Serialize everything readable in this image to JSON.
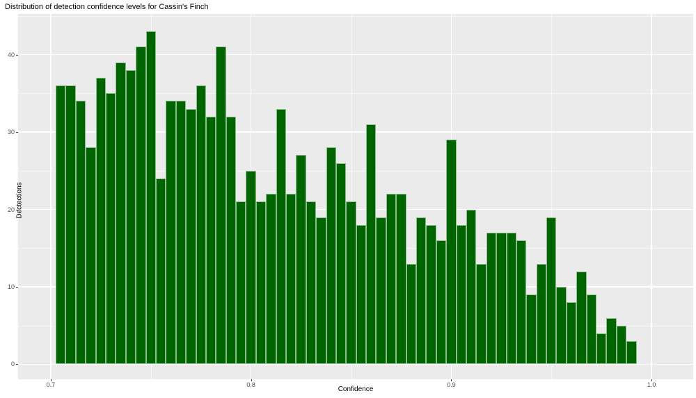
{
  "title": "Distribution of detection confidence levels for Cassin's Finch",
  "chart_data": {
    "type": "bar",
    "subtype": "histogram",
    "title": "Distribution of detection confidence levels for Cassin's Finch",
    "xlabel": "Confidence",
    "ylabel": "Dectections",
    "bin_width": 0.005,
    "bin_centers": [
      0.705,
      0.71,
      0.715,
      0.72,
      0.725,
      0.73,
      0.735,
      0.74,
      0.745,
      0.75,
      0.755,
      0.76,
      0.765,
      0.77,
      0.775,
      0.78,
      0.785,
      0.79,
      0.795,
      0.8,
      0.805,
      0.81,
      0.815,
      0.82,
      0.825,
      0.83,
      0.835,
      0.84,
      0.845,
      0.85,
      0.855,
      0.86,
      0.865,
      0.87,
      0.875,
      0.88,
      0.885,
      0.89,
      0.895,
      0.9,
      0.905,
      0.91,
      0.915,
      0.92,
      0.925,
      0.93,
      0.935,
      0.94,
      0.945,
      0.95,
      0.955,
      0.96,
      0.965,
      0.97,
      0.975,
      0.98,
      0.985,
      0.99
    ],
    "values": [
      36,
      36,
      34,
      28,
      37,
      35,
      39,
      38,
      41,
      43,
      24,
      34,
      34,
      33,
      36,
      32,
      41,
      32,
      21,
      25,
      21,
      22,
      33,
      22,
      27,
      21,
      19,
      28,
      26,
      21,
      18,
      31,
      19,
      22,
      22,
      13,
      19,
      18,
      16,
      29,
      18,
      20,
      13,
      17,
      17,
      17,
      16,
      9,
      13,
      19,
      10,
      8,
      12,
      9,
      4,
      6,
      5,
      3
    ],
    "x_ticks": [
      0.7,
      0.8,
      0.9,
      1.0
    ],
    "x_tick_labels": [
      "0.7",
      "0.8",
      "0.9",
      "1.0"
    ],
    "y_ticks": [
      0,
      10,
      20,
      30,
      40
    ],
    "y_tick_labels": [
      "0",
      "10",
      "20",
      "30",
      "40"
    ],
    "x_minor_gridlines": [
      0.75,
      0.85,
      0.95
    ],
    "y_minor_gridlines": [
      5,
      15,
      25,
      35,
      45
    ],
    "xlim": [
      0.6837,
      1.0208
    ],
    "ylim": [
      -1.93,
      45.25
    ],
    "grid": true,
    "legend_position": "none",
    "colors": {
      "bar_fill": "#006400",
      "bar_border": "#8fbc8f",
      "panel_background": "#ebebeb",
      "major_gridline": "#ffffff",
      "minor_gridline": "rgba(255,255,255,0.62)",
      "tick_label": "#4d4d4d",
      "axis_title": "#000000",
      "title": "#000000",
      "page_background": "#ffffff"
    }
  }
}
